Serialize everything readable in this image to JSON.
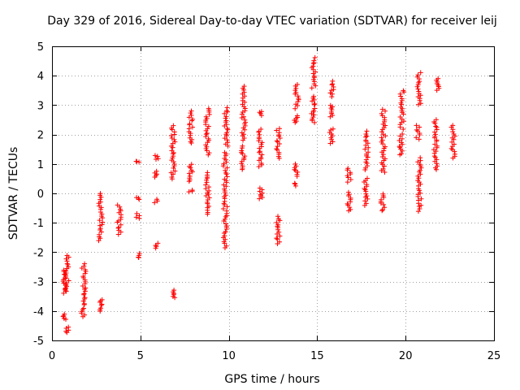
{
  "chart_data": {
    "type": "scatter",
    "title": "Day 329 of 2016, Sidereal Day-to-day VTEC variation (SDTVAR) for receiver leij",
    "xlabel": "GPS time / hours",
    "ylabel": "SDTVAR / TECUs",
    "xlim": [
      0,
      25
    ],
    "ylim": [
      -5,
      5
    ],
    "xticks": [
      0,
      5,
      10,
      15,
      20,
      25
    ],
    "yticks": [
      -5,
      -4,
      -3,
      -2,
      -1,
      0,
      1,
      2,
      3,
      4,
      5
    ],
    "xtick_labels": [
      "0",
      "5",
      "10",
      "15",
      "20",
      "25"
    ],
    "ytick_labels": [
      "-5",
      "-4",
      "-3",
      "-2",
      "-1",
      "0",
      "1",
      "2",
      "3",
      "4",
      "5"
    ],
    "grid": true,
    "marker": "+",
    "color": "#ff0000",
    "series": [
      {
        "name": "SDTVAR",
        "clusters": [
          {
            "x": 0.7,
            "y_min": -3.4,
            "y_max": -2.6
          },
          {
            "x": 0.7,
            "y_min": -4.3,
            "y_max": -4.1
          },
          {
            "x": 0.85,
            "y_min": -4.75,
            "y_max": -4.55
          },
          {
            "x": 0.85,
            "y_min": -3.3,
            "y_max": -2.1
          },
          {
            "x": 1.8,
            "y_min": -3.8,
            "y_max": -2.4
          },
          {
            "x": 1.75,
            "y_min": -4.2,
            "y_max": -3.9
          },
          {
            "x": 2.75,
            "y_min": -4.0,
            "y_max": -3.6
          },
          {
            "x": 2.75,
            "y_min": -1.6,
            "y_max": 0.0
          },
          {
            "x": 3.8,
            "y_min": -1.4,
            "y_max": -0.4
          },
          {
            "x": 4.85,
            "y_min": -2.2,
            "y_max": -2.05
          },
          {
            "x": 4.85,
            "y_min": -0.85,
            "y_max": -0.7
          },
          {
            "x": 4.85,
            "y_min": -0.2,
            "y_max": -0.15
          },
          {
            "x": 4.85,
            "y_min": 1.05,
            "y_max": 1.1
          },
          {
            "x": 5.9,
            "y_min": -1.85,
            "y_max": -1.7
          },
          {
            "x": 5.9,
            "y_min": -0.3,
            "y_max": -0.2
          },
          {
            "x": 5.9,
            "y_min": 0.55,
            "y_max": 0.75
          },
          {
            "x": 5.9,
            "y_min": 1.15,
            "y_max": 1.3
          },
          {
            "x": 6.85,
            "y_min": -3.55,
            "y_max": -3.3
          },
          {
            "x": 6.85,
            "y_min": 0.5,
            "y_max": 2.3
          },
          {
            "x": 7.85,
            "y_min": 0.4,
            "y_max": 1.0
          },
          {
            "x": 7.85,
            "y_min": 1.7,
            "y_max": 2.8
          },
          {
            "x": 7.85,
            "y_min": 0.05,
            "y_max": 0.1
          },
          {
            "x": 8.8,
            "y_min": -0.7,
            "y_max": 0.7
          },
          {
            "x": 8.8,
            "y_min": 1.3,
            "y_max": 2.9
          },
          {
            "x": 9.8,
            "y_min": -1.85,
            "y_max": 1.4
          },
          {
            "x": 9.85,
            "y_min": 1.6,
            "y_max": 2.9
          },
          {
            "x": 10.8,
            "y_min": 0.8,
            "y_max": 1.6
          },
          {
            "x": 10.85,
            "y_min": 1.8,
            "y_max": 3.65
          },
          {
            "x": 11.8,
            "y_min": -0.2,
            "y_max": 0.2
          },
          {
            "x": 11.8,
            "y_min": 0.9,
            "y_max": 2.2
          },
          {
            "x": 11.8,
            "y_min": 2.65,
            "y_max": 2.8
          },
          {
            "x": 12.8,
            "y_min": -1.7,
            "y_max": -0.8
          },
          {
            "x": 12.8,
            "y_min": 1.2,
            "y_max": 2.2
          },
          {
            "x": 13.8,
            "y_min": 0.25,
            "y_max": 0.35
          },
          {
            "x": 13.8,
            "y_min": 0.6,
            "y_max": 1.0
          },
          {
            "x": 13.8,
            "y_min": 2.4,
            "y_max": 2.65
          },
          {
            "x": 13.85,
            "y_min": 2.9,
            "y_max": 3.7
          },
          {
            "x": 14.75,
            "y_min": 2.4,
            "y_max": 2.9
          },
          {
            "x": 14.8,
            "y_min": 3.0,
            "y_max": 3.3
          },
          {
            "x": 14.8,
            "y_min": 3.6,
            "y_max": 4.6
          },
          {
            "x": 15.8,
            "y_min": 1.7,
            "y_max": 2.2
          },
          {
            "x": 15.8,
            "y_min": 2.6,
            "y_max": 3.0
          },
          {
            "x": 15.85,
            "y_min": 3.3,
            "y_max": 3.8
          },
          {
            "x": 16.8,
            "y_min": -0.6,
            "y_max": 0.05
          },
          {
            "x": 16.8,
            "y_min": 0.4,
            "y_max": 0.85
          },
          {
            "x": 17.75,
            "y_min": -0.4,
            "y_max": 0.5
          },
          {
            "x": 17.8,
            "y_min": 0.8,
            "y_max": 2.1
          },
          {
            "x": 18.7,
            "y_min": -0.6,
            "y_max": 0.0
          },
          {
            "x": 18.75,
            "y_min": 0.7,
            "y_max": 2.85
          },
          {
            "x": 19.75,
            "y_min": 1.3,
            "y_max": 2.0
          },
          {
            "x": 19.8,
            "y_min": 2.2,
            "y_max": 3.5
          },
          {
            "x": 20.7,
            "y_min": 1.85,
            "y_max": 2.3
          },
          {
            "x": 20.75,
            "y_min": 3.0,
            "y_max": 4.1
          },
          {
            "x": 20.8,
            "y_min": -0.6,
            "y_max": 1.2
          },
          {
            "x": 21.7,
            "y_min": 0.8,
            "y_max": 2.5
          },
          {
            "x": 21.8,
            "y_min": 3.5,
            "y_max": 3.9
          },
          {
            "x": 22.7,
            "y_min": 1.2,
            "y_max": 2.3
          }
        ]
      }
    ]
  }
}
